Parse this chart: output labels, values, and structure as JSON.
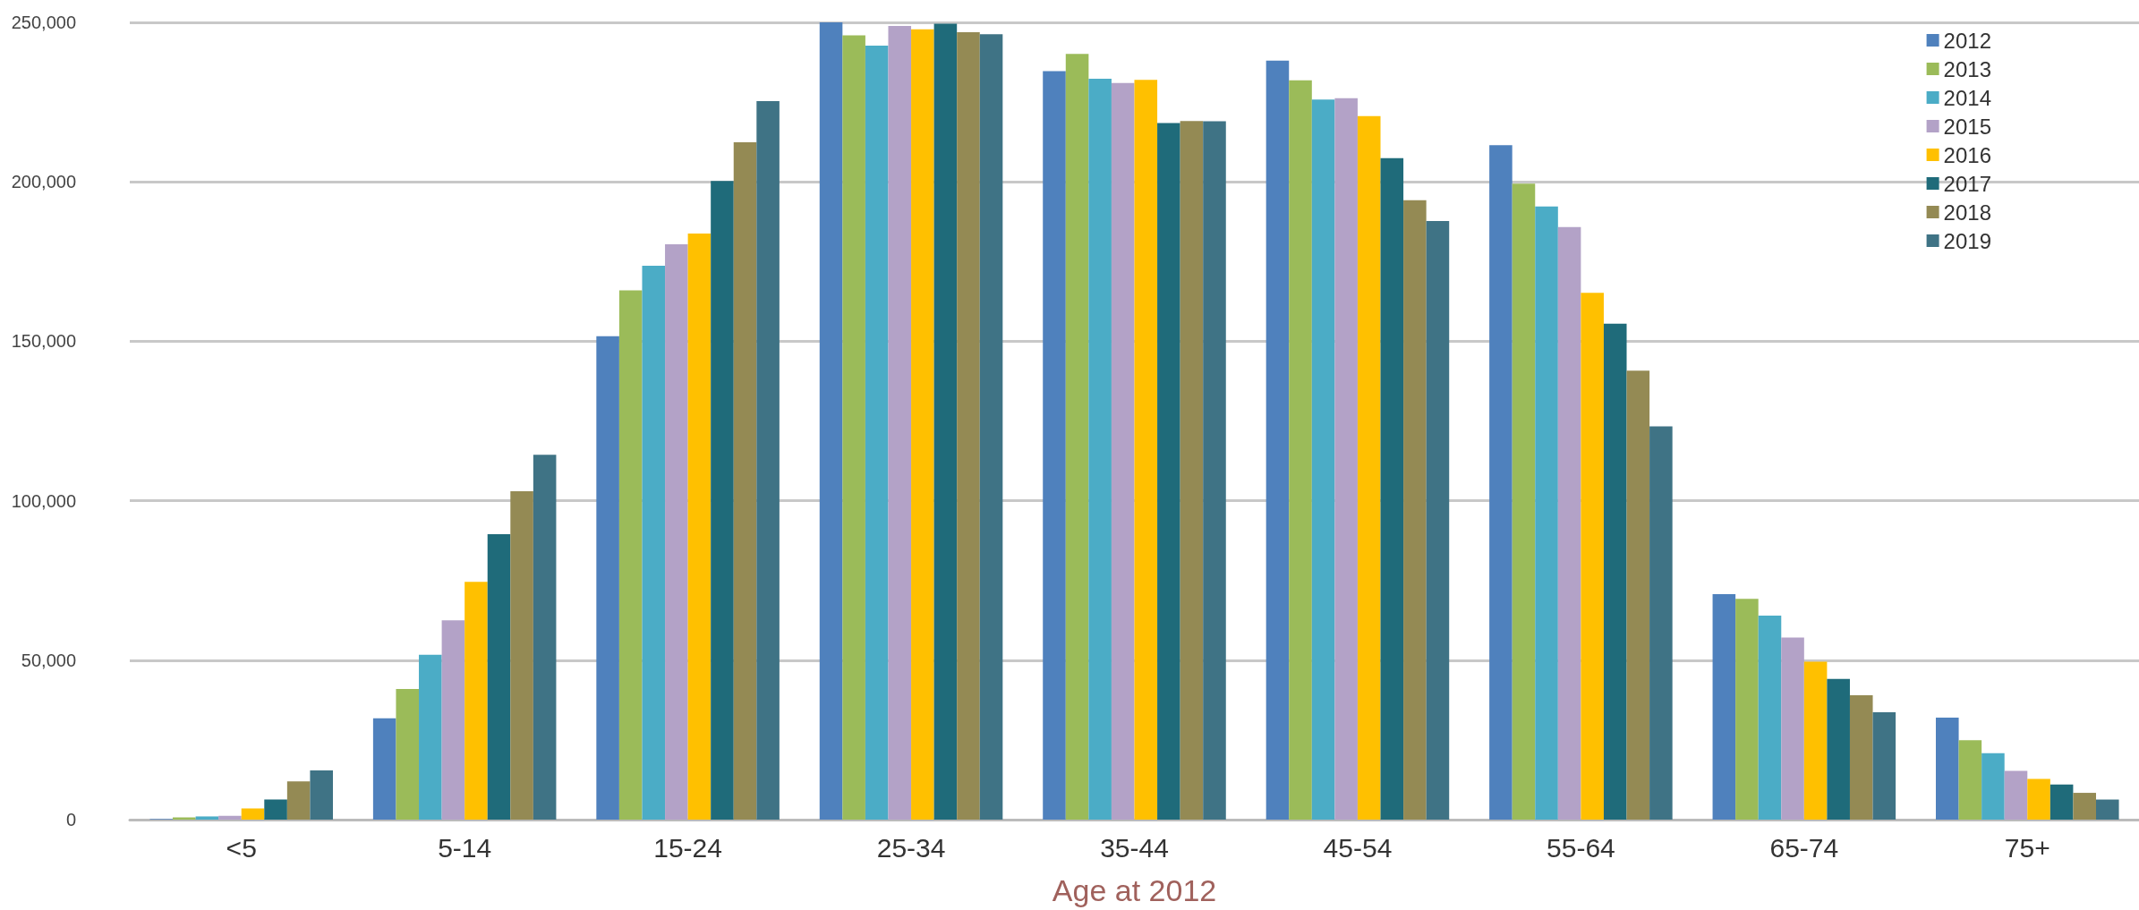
{
  "chart_data": {
    "type": "bar",
    "xlabel": "Age at 2012",
    "categories": [
      "<5",
      "5-14",
      "15-24",
      "25-34",
      "35-44",
      "45-54",
      "55-64",
      "65-74",
      "75+"
    ],
    "series": [
      {
        "name": "2012",
        "color": "#4f81bd",
        "values": [
          200,
          31800,
          151600,
          250000,
          234700,
          238000,
          211500,
          70700,
          32000
        ]
      },
      {
        "name": "2013",
        "color": "#9bbb59",
        "values": [
          700,
          41000,
          166000,
          245900,
          240100,
          231800,
          199400,
          69200,
          24900
        ]
      },
      {
        "name": "2014",
        "color": "#4bacc6",
        "values": [
          1000,
          51700,
          173700,
          242700,
          232300,
          225800,
          192300,
          64000,
          20800
        ]
      },
      {
        "name": "2015",
        "color": "#b3a2c7",
        "values": [
          1200,
          62500,
          180400,
          248900,
          231000,
          226200,
          185800,
          57100,
          15300
        ]
      },
      {
        "name": "2016",
        "color": "#ffc000",
        "values": [
          3500,
          74600,
          183800,
          247800,
          232000,
          220600,
          165200,
          49500,
          12800
        ]
      },
      {
        "name": "2017",
        "color": "#1f6b7a",
        "values": [
          6300,
          89500,
          200300,
          249600,
          218400,
          207400,
          155500,
          44100,
          11000
        ]
      },
      {
        "name": "2018",
        "color": "#948a54",
        "values": [
          12000,
          103000,
          212400,
          246900,
          219100,
          194200,
          140800,
          39000,
          8400
        ]
      },
      {
        "name": "2019",
        "color": "#3f7385",
        "values": [
          15400,
          114400,
          225300,
          246300,
          219000,
          187700,
          123300,
          33700,
          6300
        ]
      }
    ],
    "ylim": [
      0,
      250000
    ],
    "yticks": [
      {
        "value": 0,
        "label": "0"
      },
      {
        "value": 50000,
        "label": "50,000"
      },
      {
        "value": 100000,
        "label": "100,000"
      },
      {
        "value": 150000,
        "label": "150,000"
      },
      {
        "value": 200000,
        "label": "200,000"
      },
      {
        "value": 250000,
        "label": "250,000"
      }
    ],
    "grid": "y",
    "legend": "top right"
  }
}
